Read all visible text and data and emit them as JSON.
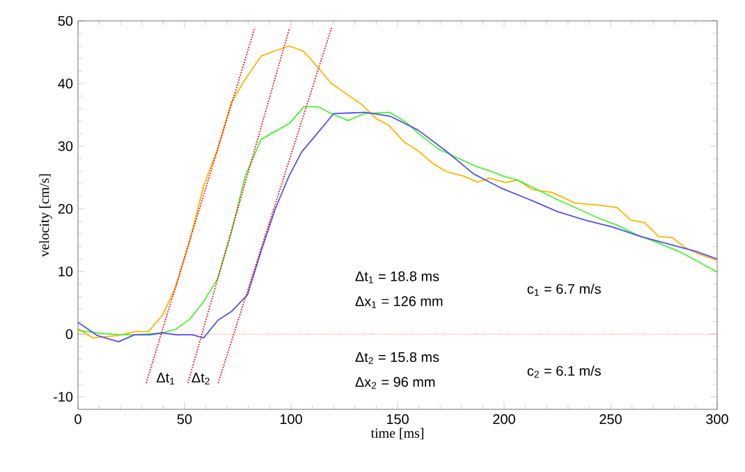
{
  "chart_data": {
    "type": "line",
    "xlabel": "time [ms]",
    "ylabel": "velocity [cm/s]",
    "xlim": [
      0,
      300
    ],
    "ylim": [
      -12,
      50
    ],
    "xticks": [
      0,
      50,
      100,
      150,
      200,
      250,
      300
    ],
    "yticks": [
      -10,
      0,
      10,
      20,
      30,
      40,
      50
    ],
    "grid": false,
    "series": [
      {
        "color": "#ffb400",
        "x": [
          0,
          7,
          19,
          26.6,
          33,
          39.6,
          46,
          52.5,
          59,
          65.6,
          72,
          78.5,
          86,
          99,
          105.6,
          110,
          119,
          133,
          140,
          146,
          153,
          159.5,
          166,
          172.5,
          181,
          187.6,
          193,
          200.7,
          206.5,
          213,
          222.7,
          233.5,
          244.4,
          253,
          259.5,
          266,
          272.5,
          279,
          285.6,
          292,
          300
        ],
        "values": [
          0.9,
          -0.6,
          -0.2,
          0.4,
          0.4,
          3,
          7.6,
          15,
          23.7,
          29.6,
          37,
          40.7,
          44.4,
          46,
          45.2,
          43.6,
          40,
          36.7,
          34.4,
          33.3,
          30.7,
          29.3,
          27.4,
          26,
          25.2,
          24.3,
          24.9,
          24.2,
          24.6,
          23.1,
          22.6,
          20.9,
          20.6,
          20.2,
          18.2,
          17.8,
          15.6,
          15.4,
          13.7,
          12.7,
          11.8
        ]
      },
      {
        "color": "#4cf030",
        "x": [
          0,
          9,
          19,
          26.6,
          32,
          39.6,
          46,
          52.5,
          59,
          65.6,
          72,
          78.5,
          86,
          99.5,
          106,
          112.6,
          119,
          126.8,
          134.4,
          146.4,
          154,
          161.4,
          169,
          177.8,
          186.7,
          193,
          199.8,
          206.3,
          216,
          224.8,
          233.5,
          244.4,
          253,
          262,
          270.6,
          281.5,
          290,
          300
        ],
        "values": [
          0.6,
          0.2,
          -0.1,
          -0.1,
          0,
          0.2,
          0.8,
          2.4,
          5.2,
          8.9,
          16.3,
          25.2,
          31.1,
          33.7,
          36.3,
          36.3,
          35.2,
          34.1,
          35.2,
          35.4,
          33.8,
          31.6,
          29.6,
          28.2,
          26.8,
          26.1,
          25.2,
          24.6,
          23,
          21.5,
          20.2,
          18.5,
          17.4,
          15.9,
          14.8,
          13.3,
          11.8,
          9.9
        ]
      },
      {
        "color": "#5050f0",
        "x": [
          0,
          9,
          19,
          26.6,
          34,
          39.6,
          46,
          53.6,
          59,
          65.6,
          72,
          79.6,
          86,
          92.6,
          99,
          105,
          110,
          120,
          135,
          146.4,
          159.5,
          172.5,
          185.6,
          198.7,
          211.8,
          224.8,
          237.9,
          251,
          264,
          277,
          290,
          300
        ],
        "values": [
          1.9,
          -0.2,
          -1.2,
          -0.1,
          -0.1,
          0.2,
          -0.1,
          -0.1,
          -0.6,
          2.2,
          3.6,
          6.3,
          13.3,
          20,
          25.2,
          29.1,
          31.1,
          35.2,
          35.4,
          34.8,
          32.6,
          29.3,
          25.6,
          23.3,
          21.5,
          19.6,
          18.2,
          17.1,
          15.6,
          14.4,
          13.2,
          12
        ]
      },
      {
        "color": "#ff0000",
        "line_style": "dotted",
        "x": [
          32,
          83
        ],
        "values": [
          -7.8,
          48.9
        ]
      },
      {
        "color": "#ff0000",
        "line_style": "dotted",
        "x": [
          51.6,
          99.3
        ],
        "values": [
          -7.8,
          48.9
        ]
      },
      {
        "color": "#ff0000",
        "line_style": "dotted",
        "x": [
          65.8,
          119
        ],
        "values": [
          -7.8,
          48.9
        ]
      }
    ],
    "ref_lines": [
      {
        "axis": "y",
        "value": 0,
        "color": "#ff0000",
        "line_style": "dotted"
      }
    ],
    "annotations": [
      "Δt$_{1}$",
      "Δt$_{2}$",
      "Δt$_{1}$ = 18.8 ms",
      "Δx$_{1}$ = 126 mm",
      "c$_{1}$ = 6.7 m/s",
      "Δt$_{2}$ = 15.8 ms",
      "Δx$_{2}$ = 96 mm",
      "c$_{2}$ = 6.1 m/s"
    ]
  }
}
